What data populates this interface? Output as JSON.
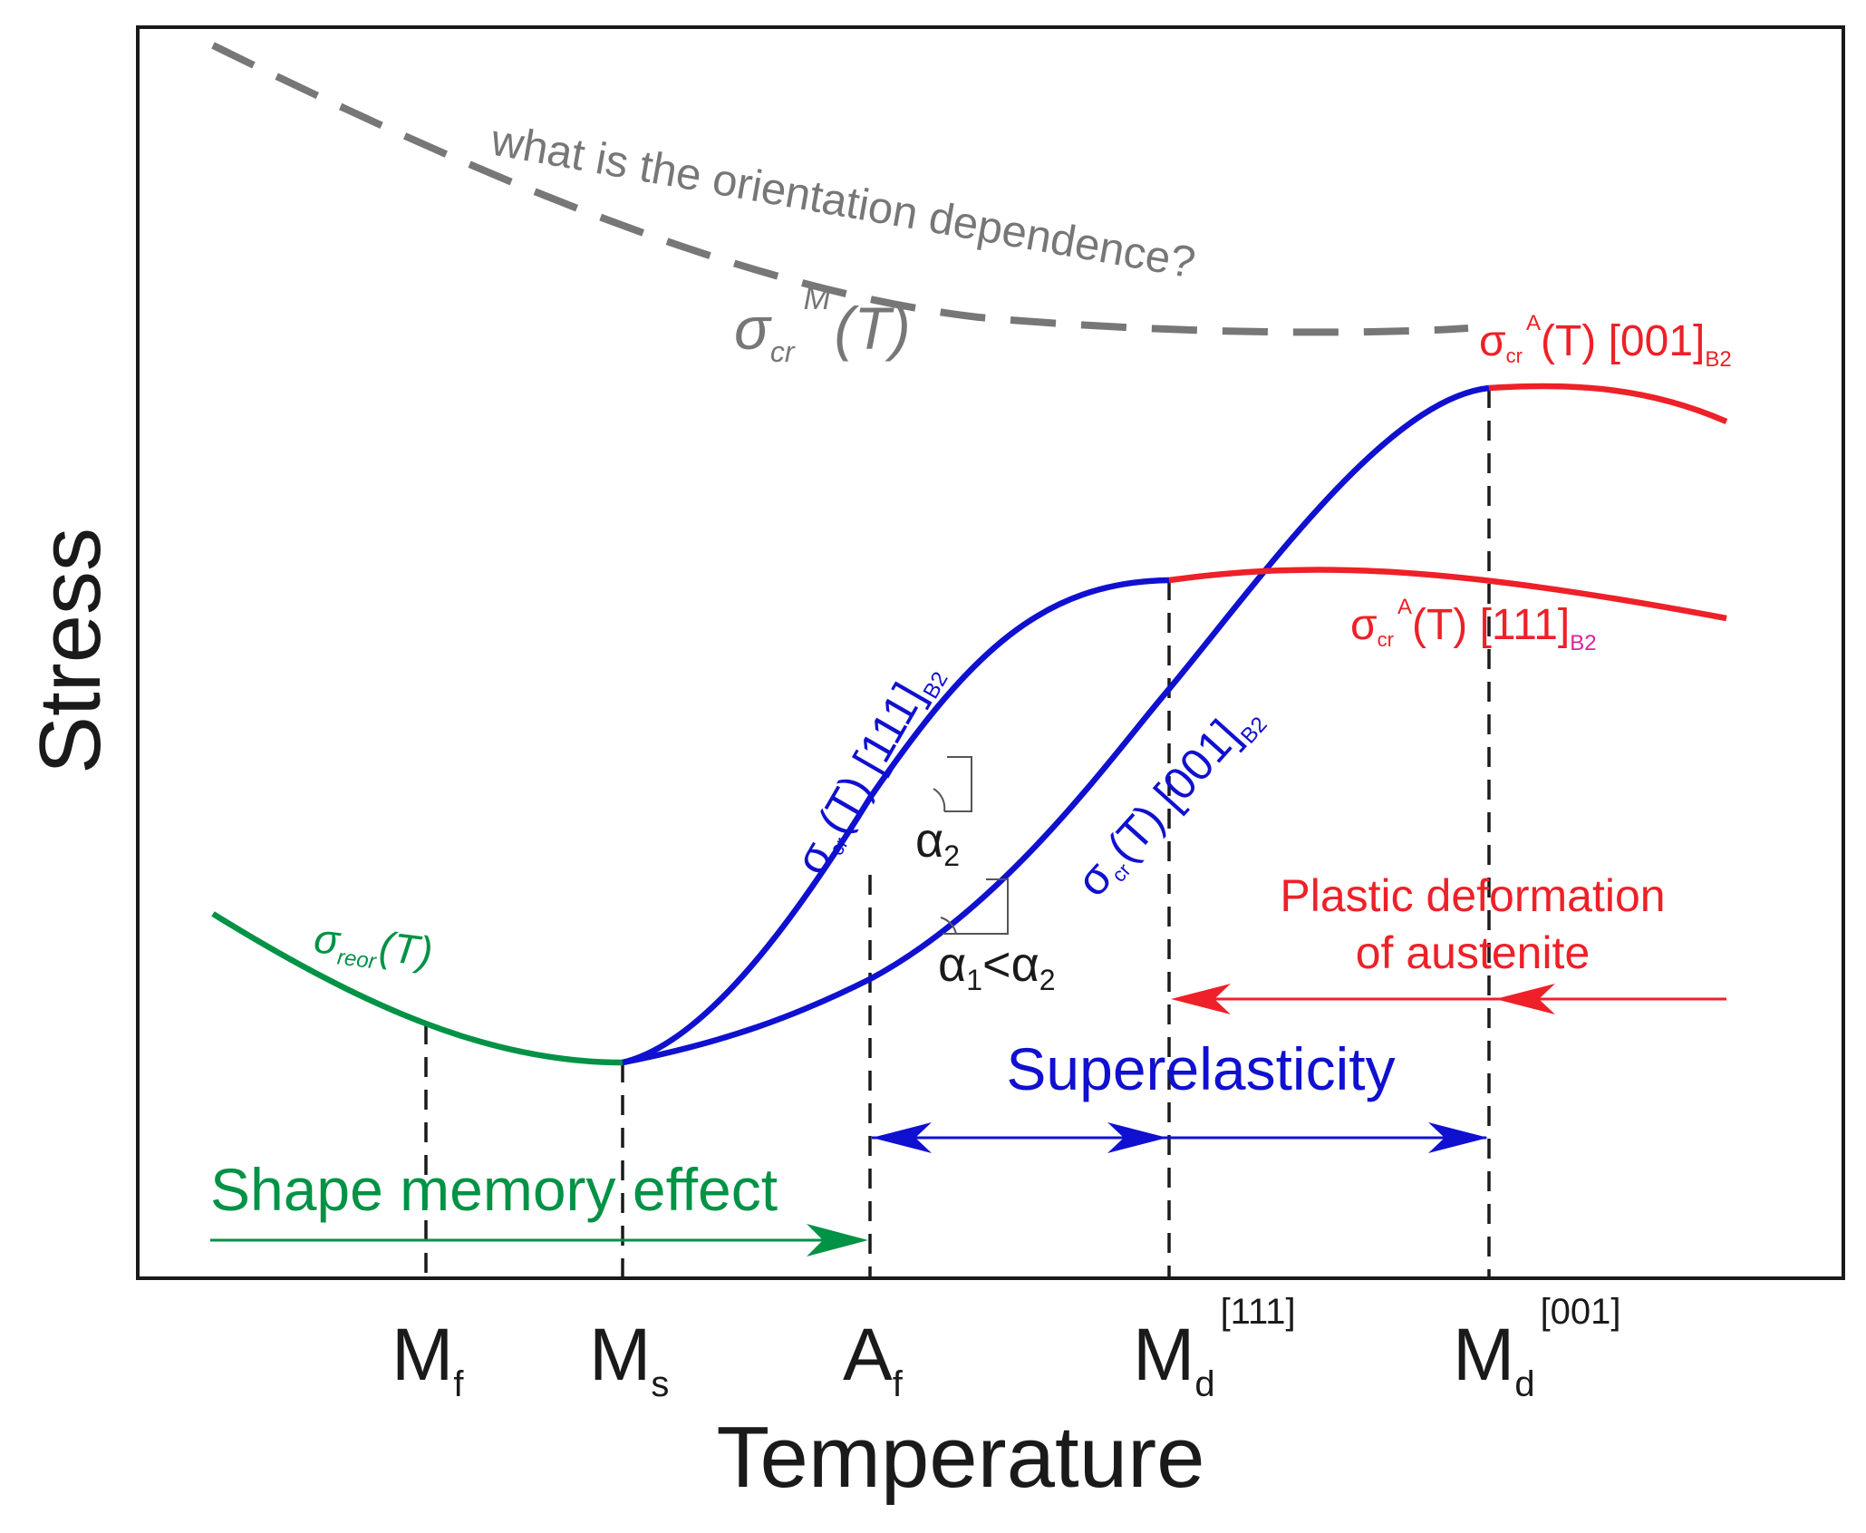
{
  "axes": {
    "x_label": "Temperature",
    "y_label": "Stress"
  },
  "colors": {
    "green": "#009245",
    "blue": "#1010d0",
    "red": "#ee2028",
    "gray": "#777777",
    "black": "#1a1a1a",
    "magenta": "#e0209a"
  },
  "annotations": {
    "question": "what is the orientation dependence?",
    "martensite_critical": {
      "base": "σ",
      "sub": "cr",
      "sup": "M",
      "tail": "(T)"
    },
    "reorientation": {
      "base": "σ",
      "sub": "reor",
      "tail": "(T)"
    },
    "austenite_001": {
      "base": "σ",
      "sub": "cr",
      "sup": "A",
      "mid": "(T) [001]",
      "sub2": "B2"
    },
    "austenite_111": {
      "base": "σ",
      "sub": "cr",
      "sup": "A",
      "mid": "(T) [111]",
      "sub2": "B2"
    },
    "curve_111": {
      "base": "σ",
      "sub": "cr",
      "mid": "(T) [111]",
      "sub2": "B2"
    },
    "curve_001": {
      "base": "σ",
      "sub": "cr",
      "mid": "(T) [001]",
      "sub2": "B2"
    },
    "alpha2": {
      "base": "α",
      "sub": "2"
    },
    "alpha_compare": {
      "base1": "α",
      "sub1": "1",
      "op": "<",
      "base2": "α",
      "sub2": "2"
    }
  },
  "regions": {
    "plastic_line1": "Plastic deformation",
    "plastic_line2": "of austenite",
    "superelasticity": "Superelasticity",
    "shape_memory": "Shape memory effect"
  },
  "temperatures": [
    {
      "id": "Mf",
      "base": "M",
      "sub": "f",
      "sup": ""
    },
    {
      "id": "Ms",
      "base": "M",
      "sub": "s",
      "sup": ""
    },
    {
      "id": "Af",
      "base": "A",
      "sub": "f",
      "sup": ""
    },
    {
      "id": "Md111",
      "base": "M",
      "sub": "d",
      "sup": "[111]"
    },
    {
      "id": "Md001",
      "base": "M",
      "sub": "d",
      "sup": "[001]"
    }
  ]
}
